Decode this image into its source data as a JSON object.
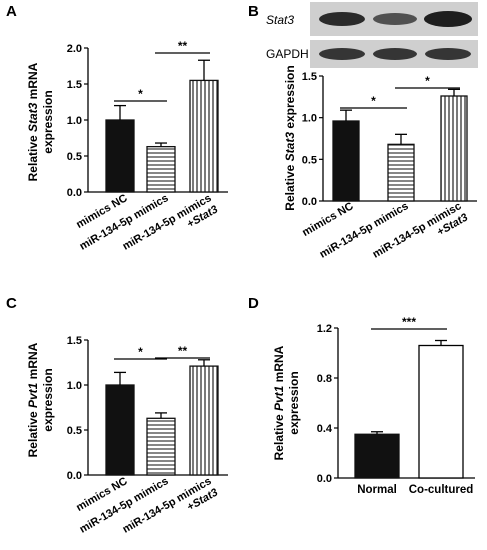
{
  "chart_data": [
    {
      "panel_label": "A",
      "type": "bar",
      "ylabel_parts": [
        "Relative ",
        "Stat3",
        " mRNA"
      ],
      "ylabel_line2": "expression",
      "ylim": [
        0,
        2.0
      ],
      "yticks": [
        "0.0",
        "0.5",
        "1.0",
        "1.5",
        "2.0"
      ],
      "categories": [
        [
          "mimics NC"
        ],
        [
          "miR-134-5p mimics"
        ],
        [
          "miR-134-5p mimics",
          "+Stat3"
        ]
      ],
      "values": [
        1.0,
        0.63,
        1.55
      ],
      "errors": [
        0.2,
        0.05,
        0.28
      ],
      "significance": [
        [
          "*",
          0,
          1
        ],
        [
          "**",
          1,
          2
        ]
      ]
    },
    {
      "panel_label": "B",
      "type": "bar",
      "ylabel_parts": [
        "Relative ",
        "Stat3",
        " expression"
      ],
      "ylim": [
        0,
        1.5
      ],
      "yticks": [
        "0.0",
        "0.5",
        "1.0",
        "1.5"
      ],
      "categories": [
        [
          "mimics NC"
        ],
        [
          "miR-134-5p mimics"
        ],
        [
          "miR-134-5p mimisc",
          "+Stat3"
        ]
      ],
      "values": [
        0.96,
        0.68,
        1.26
      ],
      "errors": [
        0.13,
        0.12,
        0.08
      ],
      "significance": [
        [
          "*",
          0,
          1
        ],
        [
          "*",
          1,
          2
        ]
      ],
      "blot_labels": [
        "Stat3",
        "GAPDH"
      ]
    },
    {
      "panel_label": "C",
      "type": "bar",
      "ylabel_parts": [
        "Relative ",
        "Pvt1",
        " mRNA"
      ],
      "ylabel_line2": "expression",
      "ylim": [
        0,
        1.5
      ],
      "yticks": [
        "0.0",
        "0.5",
        "1.0",
        "1.5"
      ],
      "categories": [
        [
          "mimics NC"
        ],
        [
          "miR-134-5p mimics"
        ],
        [
          "miR-134-5p mimics",
          "+Stat3"
        ]
      ],
      "values": [
        1.0,
        0.63,
        1.21
      ],
      "errors": [
        0.14,
        0.06,
        0.07
      ],
      "significance": [
        [
          "*",
          0,
          1
        ],
        [
          "**",
          1,
          2
        ]
      ]
    },
    {
      "panel_label": "D",
      "type": "bar",
      "ylabel_parts": [
        "Relative ",
        "Pvt1",
        " mRNA"
      ],
      "ylabel_line2": "expression",
      "ylim": [
        0,
        1.2
      ],
      "yticks": [
        "0.0",
        "0.4",
        "0.8",
        "1.2"
      ],
      "categories": [
        [
          "Normal"
        ],
        [
          "Co-cultured"
        ]
      ],
      "values": [
        0.35,
        1.06
      ],
      "errors": [
        0.02,
        0.04
      ],
      "significance": [
        [
          "***",
          0,
          1
        ]
      ]
    }
  ]
}
